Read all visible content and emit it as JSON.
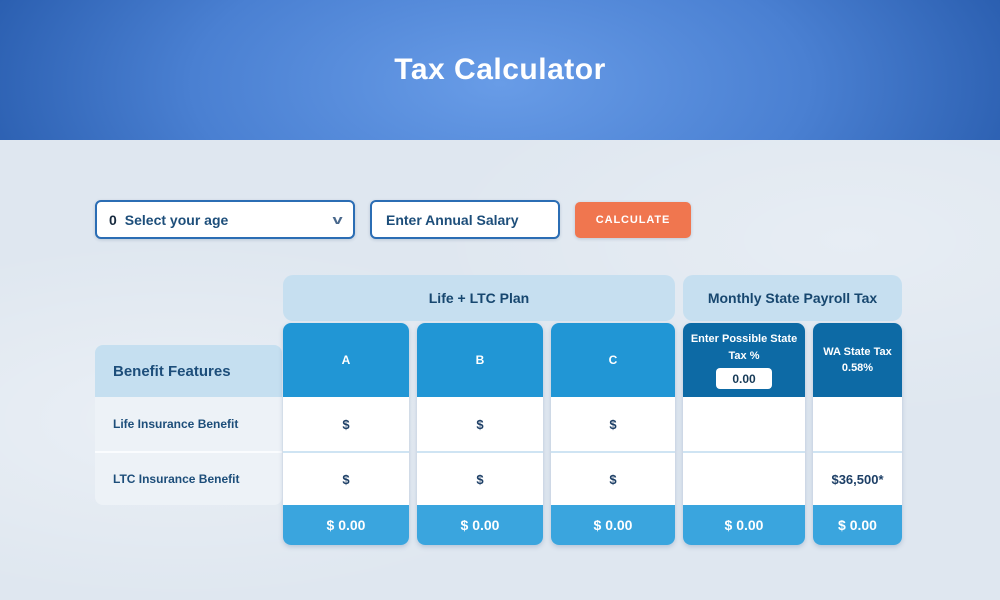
{
  "header": {
    "title": "Tax Calculator"
  },
  "form": {
    "age_select": {
      "icon_glyph": "0",
      "label": "Select your age",
      "chevron": "v"
    },
    "salary_input": {
      "placeholder": "Enter Annual Salary",
      "value": ""
    },
    "calculate_button": {
      "label": "CALCULATE"
    }
  },
  "table": {
    "group_headers": {
      "plan": "Life + LTC Plan",
      "payroll": "Monthly State Payroll Tax"
    },
    "features_header": "Benefit Features",
    "rows": {
      "row1": "Life Insurance Benefit",
      "row2": "LTC Insurance Benefit"
    },
    "columns": {
      "a": {
        "header": "A",
        "cell1": "$",
        "cell2": "$",
        "footer": "$ 0.00"
      },
      "b": {
        "header": "B",
        "cell1": "$",
        "cell2": "$",
        "footer": "$ 0.00"
      },
      "c": {
        "header": "C",
        "cell1": "$",
        "cell2": "$",
        "footer": "$ 0.00"
      },
      "state_tax": {
        "header": "Enter Possible State Tax %",
        "input_value": "0.00",
        "cell1": "",
        "cell2": "",
        "footer": "$ 0.00"
      },
      "wa_tax": {
        "header_line1": "WA State Tax",
        "header_line2": "0.58%",
        "cell1": "",
        "cell2": "$36,500*",
        "footer": "$ 0.00"
      }
    }
  },
  "colors": {
    "accent_orange": "#F0764F",
    "header_gradient_light": "#689CE7",
    "header_gradient_dark": "#1C4FA0",
    "plan_header_blue": "#2196D5",
    "payroll_header_blue": "#0D6AA5",
    "footer_blue": "#3AA5DE",
    "group_header_bg": "#C6DFF0",
    "text_navy": "#1D4E7A"
  }
}
